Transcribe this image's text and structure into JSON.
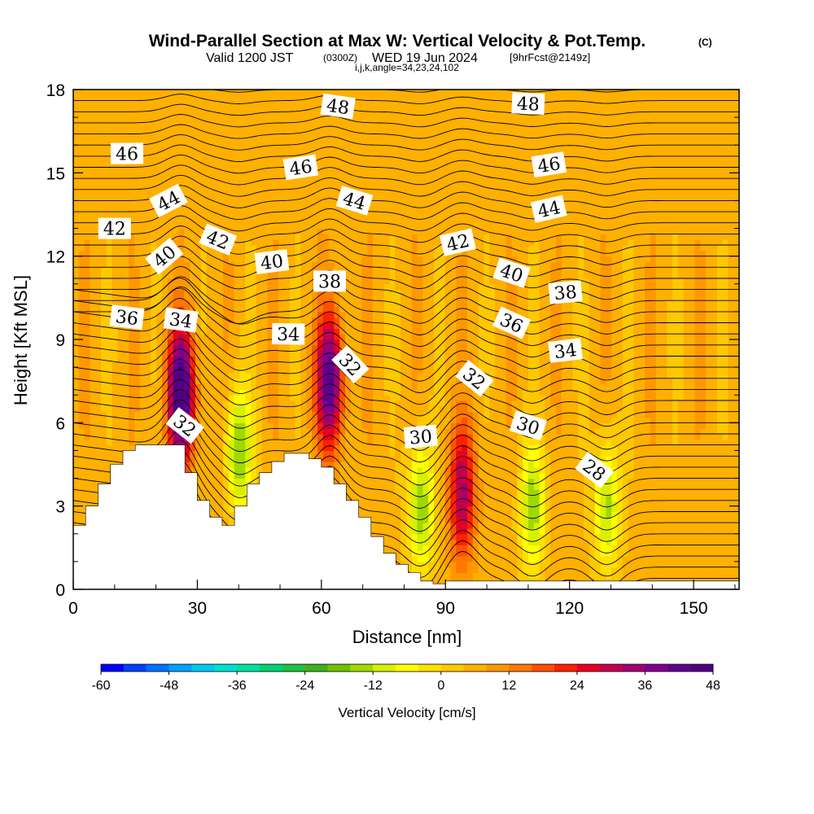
{
  "header": {
    "title_main": "Wind-Parallel Section at Max W: Vertical Velocity & Pot.Temp.",
    "title_units": "(C)",
    "valid_prefix": "Valid 1200 JST",
    "valid_zulu": "(0300Z)",
    "valid_date": "WED 19 Jun 2024",
    "forecast": "[9hrFcst@2149z]",
    "grid_info": "i,j,k,angle=34,23,24,102"
  },
  "chart_data": {
    "type": "heatmap",
    "xlabel": "Distance [nm]",
    "ylabel": "Height [Kft MSL]",
    "xlim": [
      0,
      161
    ],
    "ylim": [
      0,
      18
    ],
    "x_ticks": [
      0,
      30,
      60,
      90,
      120,
      150
    ],
    "y_ticks": [
      0,
      3,
      6,
      9,
      12,
      15,
      18
    ],
    "colorbar": {
      "label": "Vertical Velocity [cm/s]",
      "ticks": [
        -60,
        -48,
        -36,
        -24,
        -12,
        0,
        12,
        24,
        36,
        48
      ],
      "range": [
        -60,
        48
      ],
      "step": 4,
      "colors": [
        "#0000ff",
        "#0040ff",
        "#0070ff",
        "#00a0ff",
        "#00c8f0",
        "#00e0d0",
        "#00e0a0",
        "#00d070",
        "#20c040",
        "#40b020",
        "#70c000",
        "#a0d800",
        "#d8f000",
        "#ffff00",
        "#ffe000",
        "#ffc800",
        "#ffb000",
        "#ff9800",
        "#ff7800",
        "#ff5000",
        "#ff2000",
        "#e80020",
        "#c00050",
        "#a00070",
        "#800090",
        "#600090",
        "#500080"
      ]
    },
    "terrain_profile": {
      "distance": [
        0,
        3,
        6,
        9,
        12,
        15,
        18,
        21,
        24,
        27,
        30,
        33,
        36,
        39,
        42,
        45,
        48,
        51,
        54,
        57,
        60,
        63,
        66,
        69,
        72,
        75,
        78,
        81,
        84,
        87,
        90,
        93,
        96,
        99,
        102,
        105,
        108,
        111,
        114,
        117,
        120,
        123,
        126,
        129,
        132,
        135,
        138,
        141,
        144,
        147,
        150,
        153,
        156,
        159,
        161
      ],
      "height": [
        2.3,
        3.0,
        3.8,
        4.5,
        5.0,
        5.2,
        5.2,
        5.2,
        5.2,
        4.2,
        3.2,
        2.6,
        2.3,
        3.0,
        3.8,
        4.2,
        4.6,
        4.9,
        4.9,
        4.7,
        4.4,
        3.8,
        3.2,
        2.6,
        1.9,
        1.3,
        0.9,
        0.6,
        0.3,
        0.2,
        0.3,
        0.3,
        0.3,
        0.3,
        0.3,
        0.3,
        0.3,
        0.3,
        0.3,
        0.3,
        0.3,
        0.3,
        0.3,
        0.3,
        0.3,
        0.3,
        0.3,
        0.3,
        0.3,
        0.3,
        0.3,
        0.3,
        0.3,
        0.3,
        0.3
      ]
    },
    "vertical_velocity_cells": [
      {
        "x": 26,
        "y": 7.0,
        "w_max": 46
      },
      {
        "x": 40,
        "y": 5.0,
        "w_max": -22
      },
      {
        "x": 62,
        "y": 7.5,
        "w_max": 38
      },
      {
        "x": 84,
        "y": 3.0,
        "w_max": -22
      },
      {
        "x": 94,
        "y": 3.5,
        "w_max": 26
      },
      {
        "x": 111,
        "y": 3.0,
        "w_max": -20
      },
      {
        "x": 129,
        "y": 3.0,
        "w_max": -20
      }
    ],
    "theta_contours": {
      "units": "C",
      "levels": [
        28,
        30,
        32,
        34,
        36,
        38,
        40,
        42,
        44,
        46,
        48
      ],
      "labels": [
        {
          "value": 48,
          "x": 64,
          "y": 17.4
        },
        {
          "value": 48,
          "x": 110,
          "y": 17.5
        },
        {
          "value": 46,
          "x": 13,
          "y": 15.7
        },
        {
          "value": 46,
          "x": 55,
          "y": 15.2
        },
        {
          "value": 46,
          "x": 115,
          "y": 15.3
        },
        {
          "value": 44,
          "x": 23,
          "y": 14.0
        },
        {
          "value": 44,
          "x": 68,
          "y": 14.0
        },
        {
          "value": 44,
          "x": 115,
          "y": 13.7
        },
        {
          "value": 42,
          "x": 10,
          "y": 13.0
        },
        {
          "value": 42,
          "x": 35,
          "y": 12.6
        },
        {
          "value": 42,
          "x": 93,
          "y": 12.5
        },
        {
          "value": 40,
          "x": 22,
          "y": 12.0
        },
        {
          "value": 40,
          "x": 48,
          "y": 11.8
        },
        {
          "value": 40,
          "x": 106,
          "y": 11.4
        },
        {
          "value": 38,
          "x": 62,
          "y": 11.1
        },
        {
          "value": 38,
          "x": 119,
          "y": 10.7
        },
        {
          "value": 36,
          "x": 13,
          "y": 9.8
        },
        {
          "value": 36,
          "x": 106,
          "y": 9.6
        },
        {
          "value": 34,
          "x": 26,
          "y": 9.7
        },
        {
          "value": 34,
          "x": 52,
          "y": 9.2
        },
        {
          "value": 34,
          "x": 119,
          "y": 8.6
        },
        {
          "value": 32,
          "x": 67,
          "y": 8.1
        },
        {
          "value": 32,
          "x": 97,
          "y": 7.6
        },
        {
          "value": 32,
          "x": 27,
          "y": 5.9
        },
        {
          "value": 30,
          "x": 84,
          "y": 5.5
        },
        {
          "value": 30,
          "x": 110,
          "y": 5.9
        },
        {
          "value": 28,
          "x": 126,
          "y": 4.3
        }
      ]
    }
  }
}
